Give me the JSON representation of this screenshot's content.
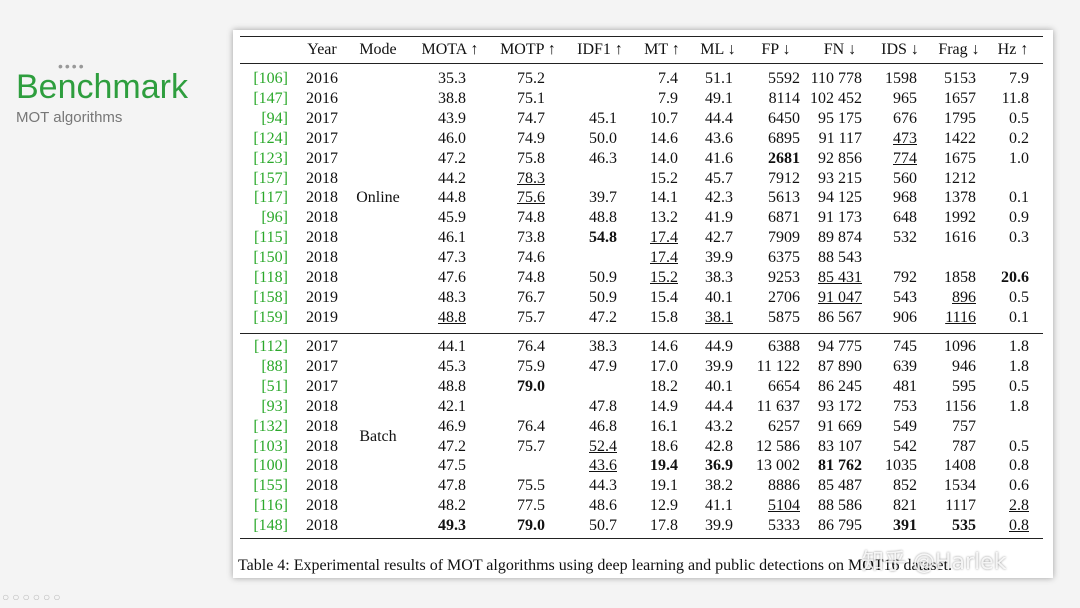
{
  "sidebar": {
    "title": "Benchmark",
    "subtitle": "MOT algorithms"
  },
  "table": {
    "header": [
      "Year",
      "Mode",
      "MOTA ↑",
      "MOTP ↑",
      "IDF1 ↑",
      "MT ↑",
      "ML ↓",
      "FP ↓",
      "FN ↓",
      "IDS ↓",
      "Frag ↓",
      "Hz ↑"
    ],
    "groups": [
      {
        "mode": "Online",
        "rows": [
          [
            "[106]",
            "2016",
            "35.3",
            "75.2",
            null,
            "7.4",
            "51.1",
            "5592",
            "110 778",
            "1598",
            "5153",
            "7.9"
          ],
          [
            "[147]",
            "2016",
            "38.8",
            "75.1",
            null,
            "7.9",
            "49.1",
            "8114",
            "102 452",
            "965",
            "1657",
            "11.8"
          ],
          [
            "[94]",
            "2017",
            "43.9",
            "74.7",
            "45.1",
            "10.7",
            "44.4",
            "6450",
            "95 175",
            "676",
            "1795",
            "0.5"
          ],
          [
            "[124]",
            "2017",
            "46.0",
            "74.9",
            "50.0",
            "14.6",
            "43.6",
            "6895",
            "91 117",
            {
              "text": "473",
              "emphasis": "underline"
            },
            "1422",
            "0.2"
          ],
          [
            "[123]",
            "2017",
            "47.2",
            "75.8",
            "46.3",
            "14.0",
            "41.6",
            {
              "text": "2681",
              "emphasis": "bold"
            },
            "92 856",
            {
              "text": "774",
              "emphasis": "underline"
            },
            "1675",
            "1.0"
          ],
          [
            "[157]",
            "2018",
            "44.2",
            {
              "text": "78.3",
              "emphasis": "underline"
            },
            null,
            "15.2",
            "45.7",
            "7912",
            "93 215",
            "560",
            "1212",
            null
          ],
          [
            "[117]",
            "2018",
            "44.8",
            {
              "text": "75.6",
              "emphasis": "underline"
            },
            "39.7",
            "14.1",
            "42.3",
            "5613",
            "94 125",
            "968",
            "1378",
            "0.1"
          ],
          [
            "[96]",
            "2018",
            "45.9",
            "74.8",
            "48.8",
            "13.2",
            "41.9",
            "6871",
            "91 173",
            "648",
            "1992",
            "0.9"
          ],
          [
            "[115]",
            "2018",
            "46.1",
            "73.8",
            {
              "text": "54.8",
              "emphasis": "bold"
            },
            {
              "text": "17.4",
              "emphasis": "underline"
            },
            "42.7",
            "7909",
            "89 874",
            "532",
            "1616",
            "0.3"
          ],
          [
            "[150]",
            "2018",
            "47.3",
            "74.6",
            null,
            {
              "text": "17.4",
              "emphasis": "underline"
            },
            "39.9",
            "6375",
            "88 543",
            null,
            null,
            null
          ],
          [
            "[118]",
            "2018",
            "47.6",
            "74.8",
            "50.9",
            {
              "text": "15.2",
              "emphasis": "underline"
            },
            "38.3",
            "9253",
            {
              "text": "85 431",
              "emphasis": "underline"
            },
            "792",
            "1858",
            {
              "text": "20.6",
              "emphasis": "bold"
            }
          ],
          [
            "[158]",
            "2019",
            "48.3",
            "76.7",
            "50.9",
            "15.4",
            "40.1",
            "2706",
            {
              "text": "91 047",
              "emphasis": "underline"
            },
            "543",
            {
              "text": "896",
              "emphasis": "underline"
            },
            "0.5"
          ],
          [
            "[159]",
            "2019",
            {
              "text": "48.8",
              "emphasis": "underline"
            },
            "75.7",
            "47.2",
            "15.8",
            {
              "text": "38.1",
              "emphasis": "underline"
            },
            "5875",
            "86 567",
            "906",
            {
              "text": "1116",
              "emphasis": "underline"
            },
            "0.1"
          ]
        ]
      },
      {
        "mode": "Batch",
        "rows": [
          [
            "[112]",
            "2017",
            "44.1",
            "76.4",
            "38.3",
            "14.6",
            "44.9",
            "6388",
            "94 775",
            "745",
            "1096",
            "1.8"
          ],
          [
            "[88]",
            "2017",
            "45.3",
            "75.9",
            "47.9",
            "17.0",
            "39.9",
            "11 122",
            "87 890",
            "639",
            "946",
            "1.8"
          ],
          [
            "[51]",
            "2017",
            "48.8",
            {
              "text": "79.0",
              "emphasis": "bold"
            },
            null,
            "18.2",
            "40.1",
            "6654",
            "86 245",
            "481",
            "595",
            "0.5"
          ],
          [
            "[93]",
            "2018",
            "42.1",
            null,
            "47.8",
            "14.9",
            "44.4",
            "11 637",
            "93 172",
            "753",
            "1156",
            "1.8"
          ],
          [
            "[132]",
            "2018",
            "46.9",
            "76.4",
            "46.8",
            "16.1",
            "43.2",
            "6257",
            "91 669",
            "549",
            "757",
            null
          ],
          [
            "[103]",
            "2018",
            "47.2",
            "75.7",
            {
              "text": "52.4",
              "emphasis": "underline"
            },
            "18.6",
            "42.8",
            "12 586",
            "83 107",
            "542",
            "787",
            "0.5"
          ],
          [
            "[100]",
            "2018",
            "47.5",
            null,
            {
              "text": "43.6",
              "emphasis": "underline"
            },
            {
              "text": "19.4",
              "emphasis": "bold"
            },
            {
              "text": "36.9",
              "emphasis": "bold"
            },
            "13 002",
            {
              "text": "81 762",
              "emphasis": "bold"
            },
            "1035",
            "1408",
            "0.8"
          ],
          [
            "[155]",
            "2018",
            "47.8",
            "75.5",
            "44.3",
            "19.1",
            "38.2",
            "8886",
            "85 487",
            "852",
            "1534",
            "0.6"
          ],
          [
            "[116]",
            "2018",
            "48.2",
            "77.5",
            "48.6",
            "12.9",
            "41.1",
            {
              "text": "5104",
              "emphasis": "underline"
            },
            "88 586",
            "821",
            "1117",
            {
              "text": "2.8",
              "emphasis": "underline"
            }
          ],
          [
            "[148]",
            "2018",
            {
              "text": "49.3",
              "emphasis": "bold"
            },
            {
              "text": "79.0",
              "emphasis": "bold"
            },
            "50.7",
            "17.8",
            "39.9",
            "5333",
            "86 795",
            {
              "text": "391",
              "emphasis": "bold"
            },
            {
              "text": "535",
              "emphasis": "bold"
            },
            {
              "text": "0.8",
              "emphasis": "underline"
            }
          ]
        ]
      }
    ],
    "caption": "Table 4: Experimental results of MOT algorithms using deep learning and public detections on MOT16 dataset."
  },
  "watermark": "知乎 @Harlek"
}
